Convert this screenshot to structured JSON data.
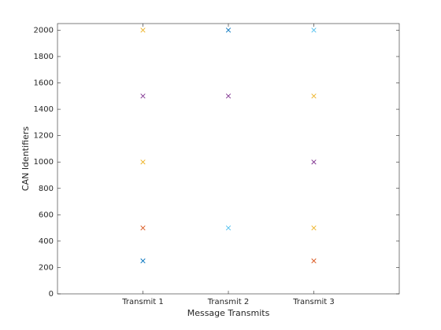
{
  "chart_data": {
    "type": "scatter",
    "xlabel": "Message Transmits",
    "ylabel": "CAN Identifiers",
    "x": [
      1,
      1,
      1,
      1,
      1,
      2,
      2,
      2,
      3,
      3,
      3,
      3,
      3
    ],
    "y": [
      250,
      500,
      1000,
      1500,
      2000,
      500,
      1500,
      2000,
      250,
      500,
      1000,
      1500,
      2000
    ],
    "colors": [
      "#0072bd",
      "#d95319",
      "#edb120",
      "#7e2f8e",
      "#edb120",
      "#4dbeee",
      "#7e2f8e",
      "#0072bd",
      "#d95319",
      "#edb120",
      "#7e2f8e",
      "#edb120",
      "#4dbeee"
    ],
    "xlim": [
      0,
      4
    ],
    "xticks": [
      {
        "value": 1,
        "label": "Transmit 1"
      },
      {
        "value": 2,
        "label": "Transmit 2"
      },
      {
        "value": 3,
        "label": "Transmit 3"
      }
    ],
    "ylim": [
      0,
      2050
    ],
    "yticks": [
      0,
      200,
      400,
      600,
      800,
      1000,
      1200,
      1400,
      1600,
      1800,
      2000
    ],
    "grid": false
  }
}
